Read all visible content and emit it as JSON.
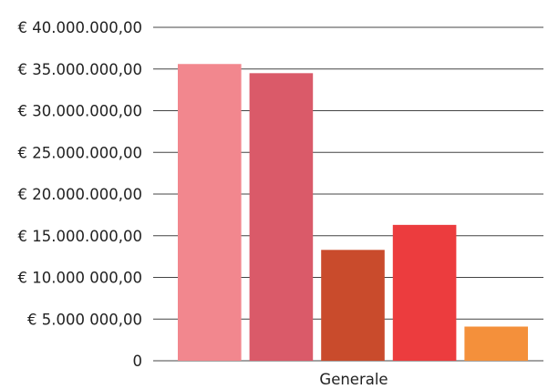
{
  "chart_data": {
    "type": "bar",
    "categories": [
      "Generale"
    ],
    "series": [
      {
        "values": [
          35600000
        ],
        "color": "#F2878E"
      },
      {
        "values": [
          34500000
        ],
        "color": "#DA5A69"
      },
      {
        "values": [
          13300000
        ],
        "color": "#C94B2C"
      },
      {
        "values": [
          16300000
        ],
        "color": "#EC3C3E"
      },
      {
        "values": [
          4100000
        ],
        "color": "#F4903B"
      }
    ],
    "ylim": [
      0,
      40000000
    ],
    "yticks": [
      {
        "value": 0,
        "label": "0"
      },
      {
        "value": 5000000,
        "label": "€ 5.000 000,00"
      },
      {
        "value": 10000000,
        "label": "€ 10.000 000,00"
      },
      {
        "value": 15000000,
        "label": "€ 15.000.000,00"
      },
      {
        "value": 20000000,
        "label": "€ 20.000.000,00"
      },
      {
        "value": 25000000,
        "label": "€ 25.000.000,00"
      },
      {
        "value": 30000000,
        "label": "€ 30.000.000,00"
      },
      {
        "value": 35000000,
        "label": "€ 35.000.000,00"
      },
      {
        "value": 40000000,
        "label": "€ 40.000.000,00"
      }
    ],
    "grid": true,
    "legend": "none"
  }
}
